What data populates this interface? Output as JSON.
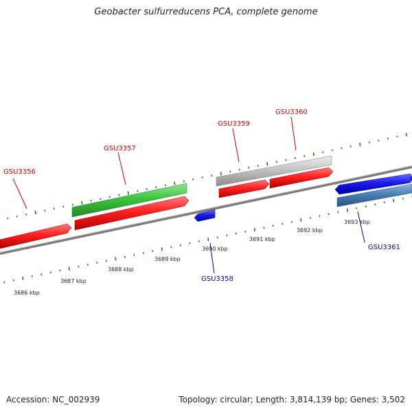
{
  "title": "Geobacter sulfurreducens PCA, complete genome",
  "footer": {
    "accession": "Accession: NC_002939",
    "stats": "Topology: circular; Length: 3,814,139 bp; Genes: 3,502"
  },
  "colors": {
    "forward_cds": "#ff2a2a",
    "reverse_cds": "#1a1aee",
    "forward_gene_green": "#3ec43e",
    "forward_gene_grey": "#c2c2c2",
    "reverse_gene_steel": "#4a7fb4",
    "label_forward": "#cc0000",
    "label_reverse": "#0000aa",
    "ticks": "#1f7a1f",
    "backbone": "#777777"
  },
  "ticks": {
    "labels": [
      "3686 kbp",
      "3687 kbp",
      "3688 kbp",
      "3689 kbp",
      "3690 kbp",
      "3691 kbp",
      "3692 kbp",
      "3693 kbp"
    ]
  },
  "genes": [
    {
      "name": "GSU3356",
      "strand": "forward"
    },
    {
      "name": "GSU3357",
      "strand": "forward"
    },
    {
      "name": "GSU3358",
      "strand": "reverse"
    },
    {
      "name": "GSU3359",
      "strand": "forward"
    },
    {
      "name": "GSU3360",
      "strand": "forward"
    },
    {
      "name": "GSU3361",
      "strand": "reverse"
    }
  ]
}
